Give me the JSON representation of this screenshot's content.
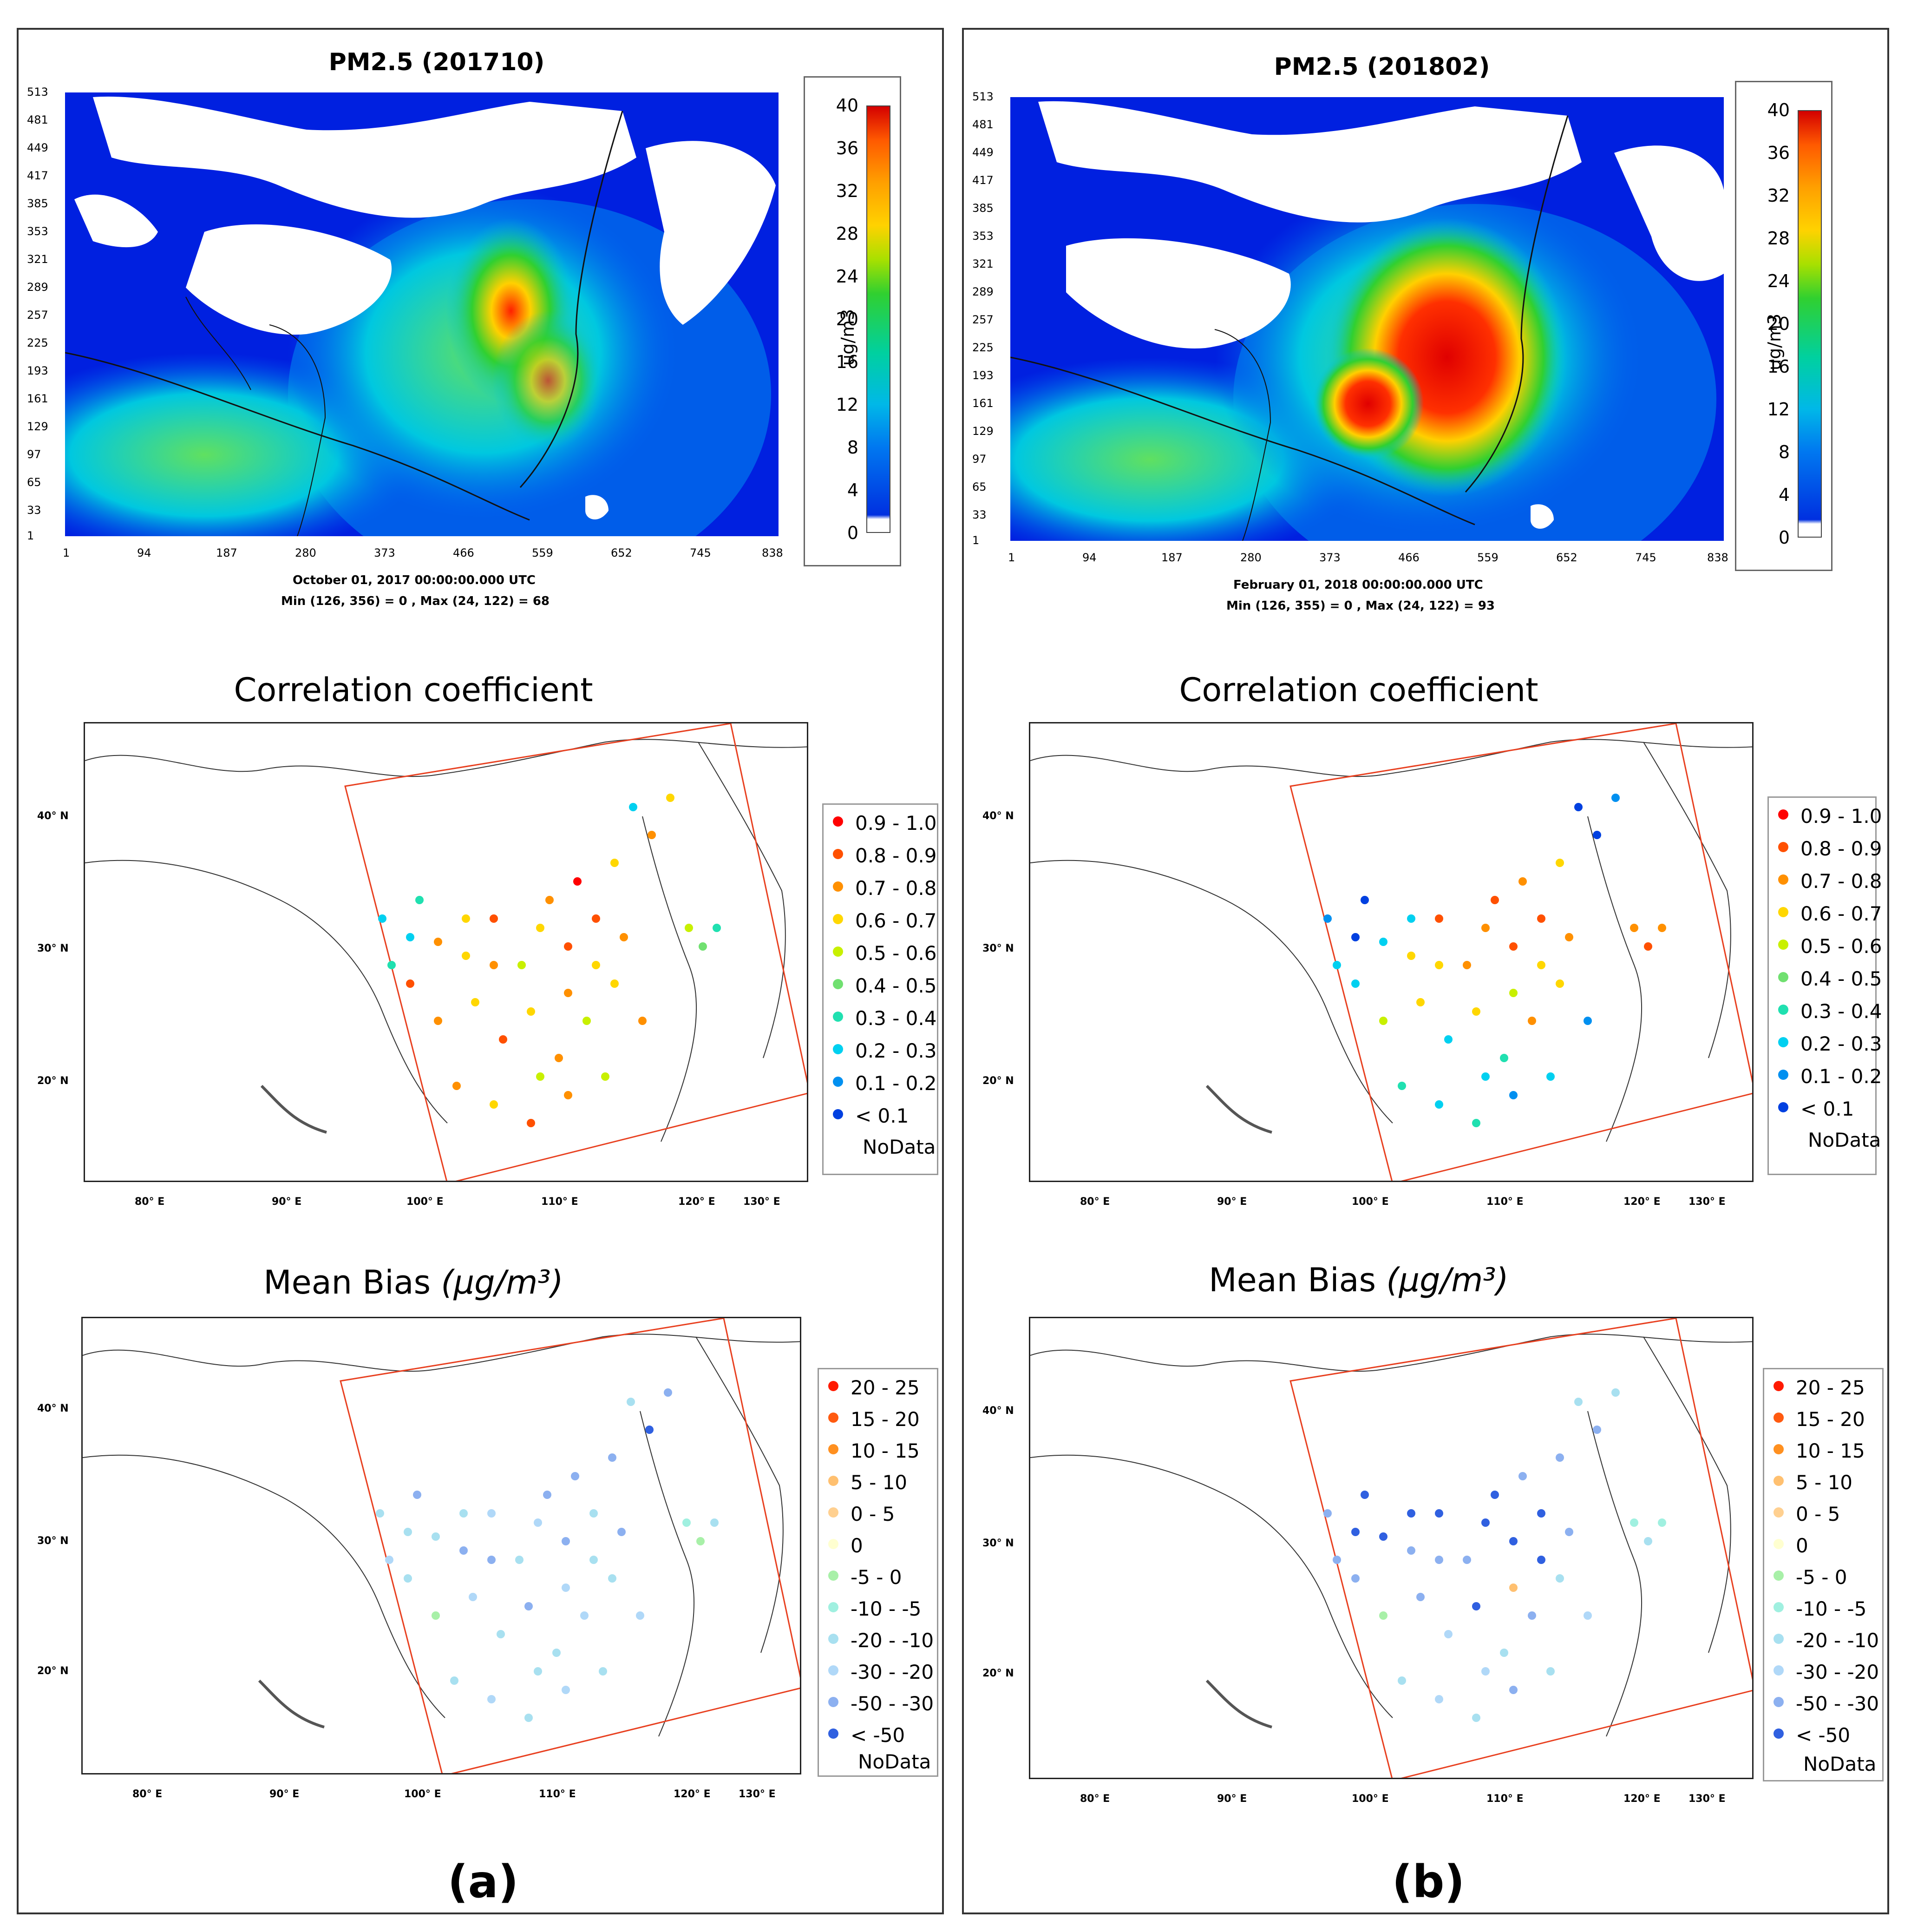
{
  "panels": [
    {
      "id": "a",
      "label": "(a)",
      "pm_title": "PM2.5 (201710)",
      "pm_timestamp": "October 01, 2017 00:00:00.000 UTC",
      "pm_minmax": "Min (126, 356) = 0 , Max (24, 122) = 68",
      "corr_title": "Correlation  coefficient",
      "bias_title": "Mean Bias",
      "bias_unit": "(μg/m³)"
    },
    {
      "id": "b",
      "label": "(b)",
      "pm_title": "PM2.5 (201802)",
      "pm_timestamp": "February 01, 2018 00:00:00.000 UTC",
      "pm_minmax": "Min (126, 355) = 0 , Max (24, 122) = 93",
      "corr_title": "Correlation  coefficient",
      "bias_title": "Mean Bias",
      "bias_unit": "(μg/m³)"
    }
  ],
  "pm_axes": {
    "y_ticks": [
      "513",
      "481",
      "449",
      "417",
      "385",
      "353",
      "321",
      "289",
      "257",
      "225",
      "193",
      "161",
      "129",
      "97",
      "65",
      "33",
      "1"
    ],
    "x_ticks": [
      "1",
      "94",
      "187",
      "280",
      "373",
      "466",
      "559",
      "652",
      "745",
      "838"
    ]
  },
  "colorbar": {
    "unit": "ug/m3",
    "ticks": [
      "40",
      "36",
      "32",
      "28",
      "24",
      "20",
      "16",
      "12",
      "8",
      "4",
      "0"
    ],
    "colors": [
      "#d40000",
      "#ff5a00",
      "#ffa000",
      "#ffd200",
      "#a8e000",
      "#30d030",
      "#00d0a0",
      "#00b8e8",
      "#0078f0",
      "#0030e0",
      "#ffffff"
    ]
  },
  "map_axes": {
    "lat_ticks": [
      "40° N",
      "30° N",
      "20° N"
    ],
    "lon_ticks": [
      "80° E",
      "90° E",
      "100° E",
      "110° E",
      "120° E",
      "130° E"
    ]
  },
  "corr_legend": {
    "items": [
      {
        "label": "0.9 - 1.0",
        "color": "#ff0000"
      },
      {
        "label": "0.8 - 0.9",
        "color": "#ff5000"
      },
      {
        "label": "0.7 - 0.8",
        "color": "#ff9000"
      },
      {
        "label": "0.6 - 0.7",
        "color": "#ffd700"
      },
      {
        "label": "0.5 - 0.6",
        "color": "#c8f000"
      },
      {
        "label": "0.4 - 0.5",
        "color": "#70e070"
      },
      {
        "label": "0.3 - 0.4",
        "color": "#20e0b0"
      },
      {
        "label": "0.2 - 0.3",
        "color": "#00d0f0"
      },
      {
        "label": "0.1 - 0.2",
        "color": "#0090f0"
      },
      {
        "label": "< 0.1",
        "color": "#0040e0"
      }
    ],
    "nodata": "NoData"
  },
  "bias_legend": {
    "items": [
      {
        "label": "20 - 25",
        "color": "#ff1a00"
      },
      {
        "label": "15 - 20",
        "color": "#ff5a10"
      },
      {
        "label": "10 - 15",
        "color": "#ff9020"
      },
      {
        "label": "5 - 10",
        "color": "#ffc070"
      },
      {
        "label": "0 - 5",
        "color": "#ffd090"
      },
      {
        "label": "0",
        "color": "#ffffd0"
      },
      {
        "label": "-5 - 0",
        "color": "#a8f0a8"
      },
      {
        "label": "-10 - -5",
        "color": "#a0f0e0"
      },
      {
        "label": "-20 - -10",
        "color": "#a8e0f0"
      },
      {
        "label": "-30 - -20",
        "color": "#b0d8f8"
      },
      {
        "label": "-50 - -30",
        "color": "#8cb0f0"
      },
      {
        "label": "< -50",
        "color": "#3060e0"
      }
    ],
    "nodata": "NoData"
  }
}
